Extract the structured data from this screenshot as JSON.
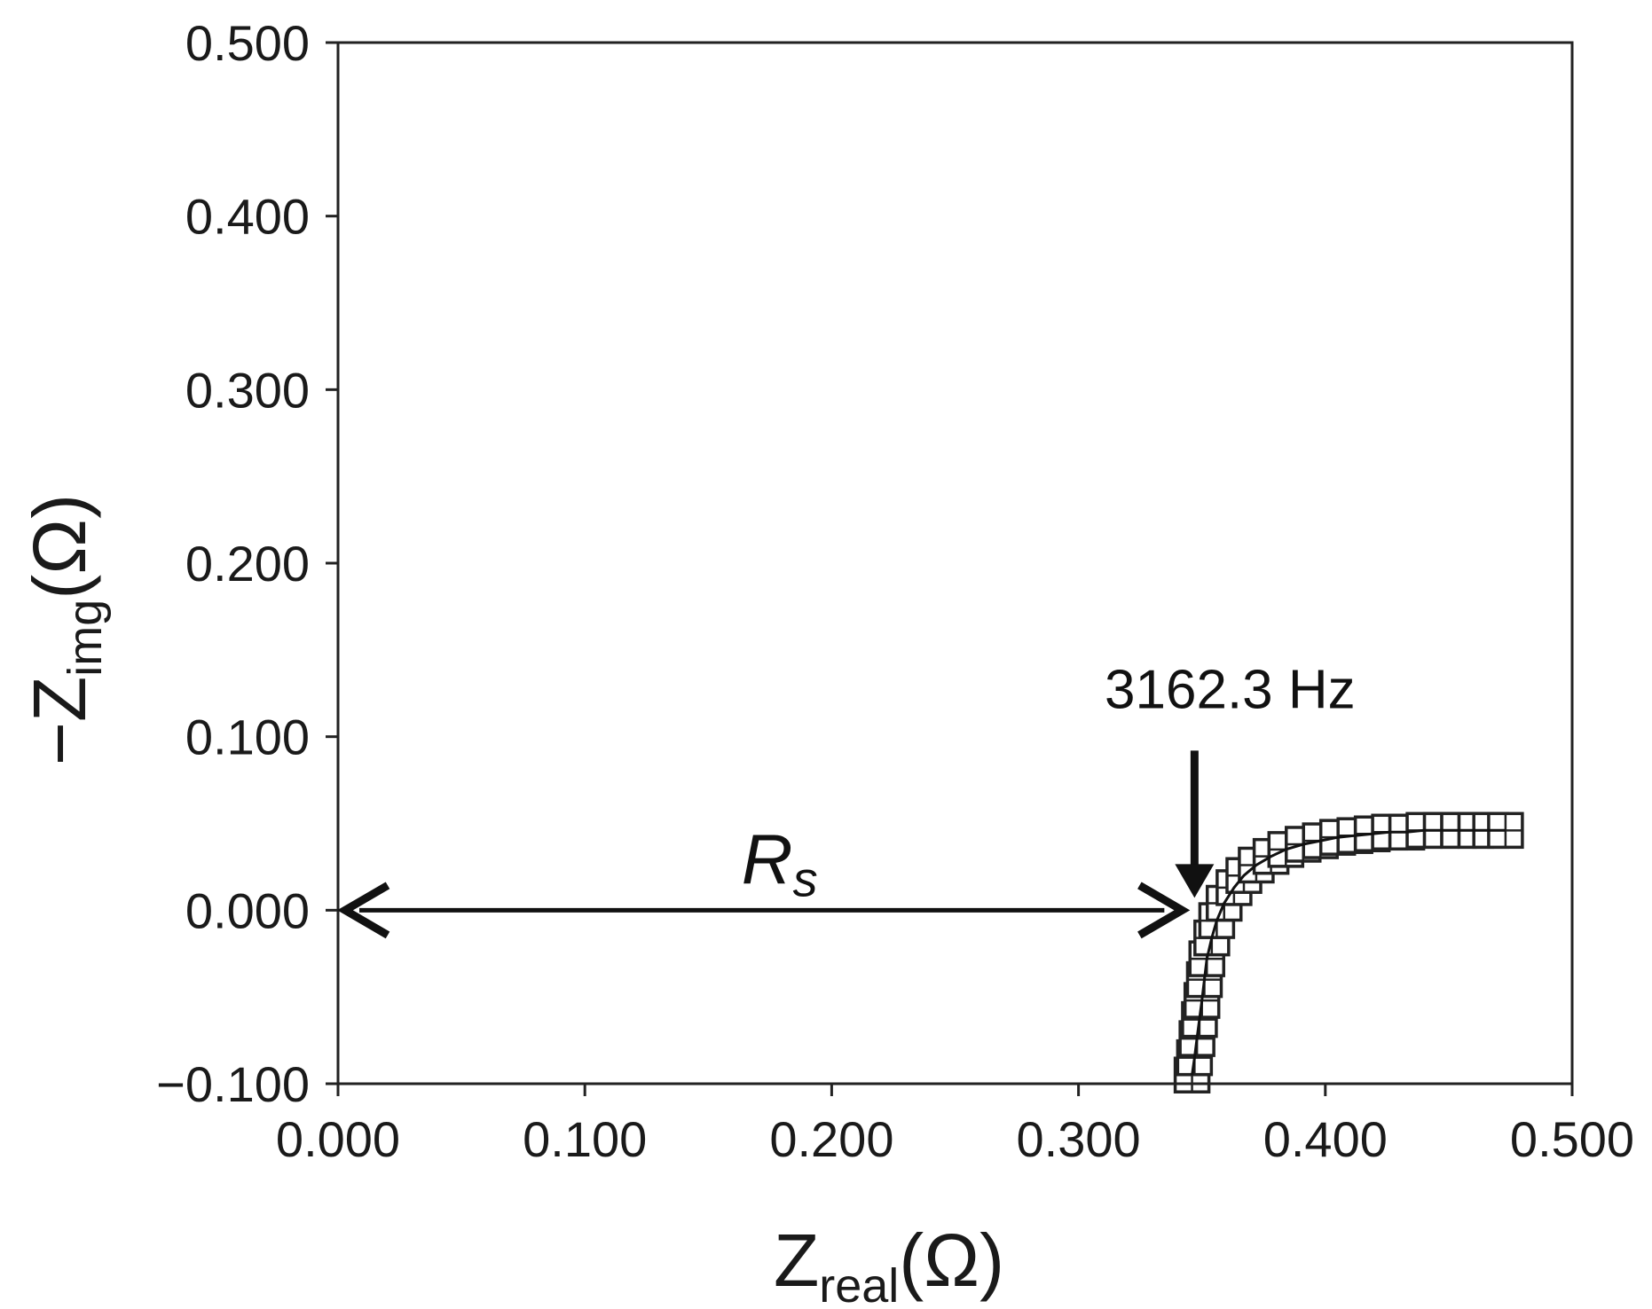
{
  "chart_data": {
    "type": "scatter",
    "title": "",
    "xlabel": {
      "main": "Z",
      "sub": "real",
      "unit": "(Ω)"
    },
    "ylabel": {
      "prefix": "−",
      "main": "Z",
      "sub": "img",
      "unit": "(Ω)"
    },
    "xlim": [
      0,
      0.5
    ],
    "ylim": [
      -0.1,
      0.5
    ],
    "xticks": [
      "0.000",
      "0.100",
      "0.200",
      "0.300",
      "0.400",
      "0.500"
    ],
    "yticks": [
      "−0.100",
      "0.000",
      "0.100",
      "0.200",
      "0.300",
      "0.400",
      "0.500"
    ],
    "xtick_values": [
      0,
      0.1,
      0.2,
      0.3,
      0.4,
      0.5
    ],
    "ytick_values": [
      -0.1,
      0,
      0.1,
      0.2,
      0.3,
      0.4,
      0.5
    ],
    "grid": false,
    "series": [
      {
        "marker": "square-crosshair",
        "color": "#222222",
        "fit_line": true,
        "x": [
          0.346,
          0.347,
          0.348,
          0.349,
          0.35,
          0.351,
          0.352,
          0.354,
          0.356,
          0.359,
          0.363,
          0.367,
          0.372,
          0.378,
          0.384,
          0.391,
          0.398,
          0.405,
          0.412,
          0.419,
          0.426,
          0.433,
          0.44,
          0.447,
          0.454,
          0.461,
          0.467,
          0.473
        ],
        "y": [
          -0.095,
          -0.085,
          -0.074,
          -0.063,
          -0.052,
          -0.04,
          -0.028,
          -0.016,
          -0.006,
          0.004,
          0.013,
          0.02,
          0.026,
          0.031,
          0.035,
          0.038,
          0.04,
          0.042,
          0.043,
          0.044,
          0.045,
          0.045,
          0.046,
          0.046,
          0.046,
          0.046,
          0.046,
          0.046
        ]
      }
    ],
    "annotations": {
      "frequency_label": "3162.3 Hz",
      "frequency_point": [
        0.347,
        0.0
      ],
      "rs_label_main": "R",
      "rs_label_sub": "s",
      "rs_span": [
        0.0,
        0.347
      ]
    }
  }
}
